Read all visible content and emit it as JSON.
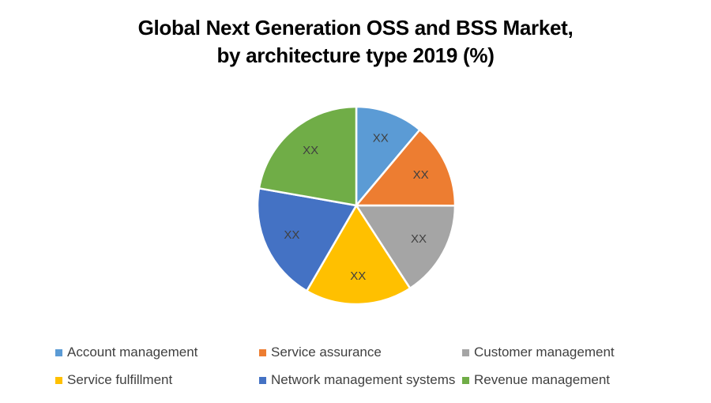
{
  "title": {
    "line1": "Global Next Generation OSS and BSS Market,",
    "line2": "by architecture type 2019 (%)"
  },
  "chart_data": {
    "type": "pie",
    "title": "Global Next Generation OSS and BSS Market, by architecture type 2019 (%)",
    "categories": [
      "Account management",
      "Service assurance",
      "Customer management",
      "Service fulfillment",
      "Network management systems",
      "Revenue management"
    ],
    "values": [
      11.1,
      13.9,
      15.8,
      17.5,
      19.4,
      22.2
    ],
    "data_labels": [
      "XX",
      "XX",
      "XX",
      "XX",
      "XX",
      "XX"
    ],
    "colors": [
      "#5B9BD5",
      "#ED7D31",
      "#A5A5A5",
      "#FFC000",
      "#4472C4",
      "#70AD47"
    ],
    "start_angle_deg": 0,
    "direction": "clockwise",
    "legend_position": "bottom"
  },
  "legend": {
    "items": [
      {
        "label": "Account management",
        "color": "#5B9BD5"
      },
      {
        "label": "Service assurance",
        "color": "#ED7D31"
      },
      {
        "label": "Customer management",
        "color": "#A5A5A5"
      },
      {
        "label": "Service fulfillment",
        "color": "#FFC000"
      },
      {
        "label": "Network management systems",
        "color": "#4472C4"
      },
      {
        "label": "Revenue management",
        "color": "#70AD47"
      }
    ]
  }
}
